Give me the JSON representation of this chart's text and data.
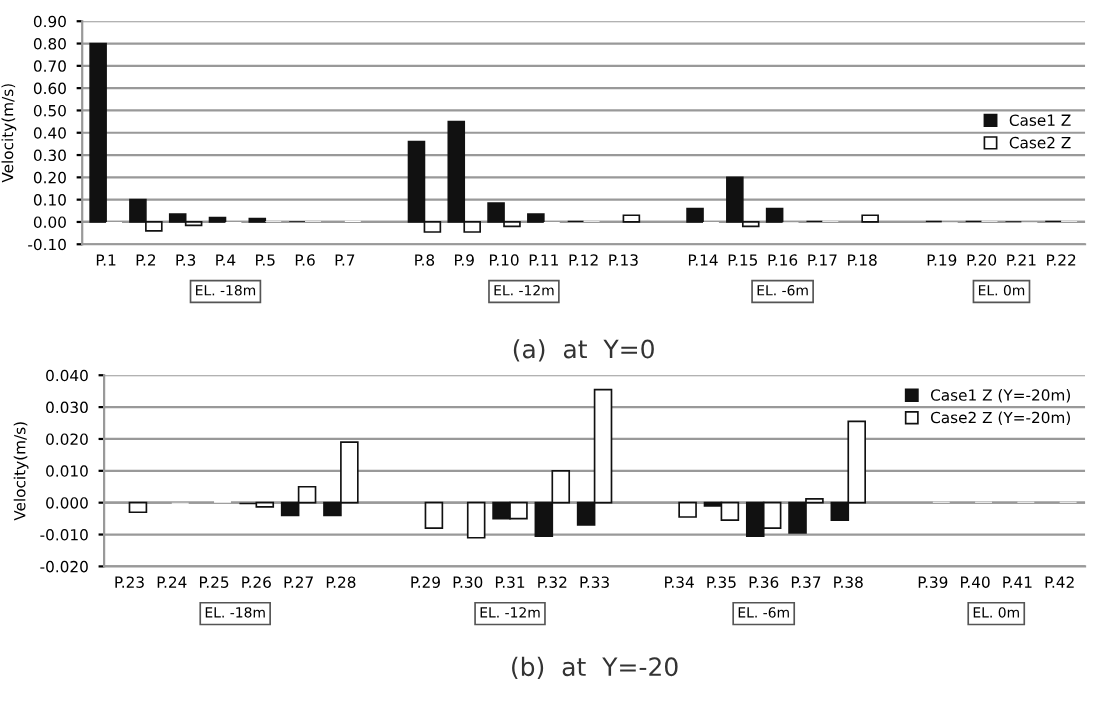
{
  "chart_data": [
    {
      "type": "bar",
      "title": "(a)  at  Y=0",
      "ylabel": "Velocity(m/s)",
      "categories": [
        "P.1",
        "P.2",
        "P.3",
        "P.4",
        "P.5",
        "P.6",
        "P.7",
        null,
        "P.8",
        "P.9",
        "P.10",
        "P.11",
        "P.12",
        "P.13",
        null,
        "P.14",
        "P.15",
        "P.16",
        "P.17",
        "P.18",
        null,
        "P.19",
        "P.20",
        "P.21",
        "P.22"
      ],
      "series": [
        {
          "name": "Case1 Z",
          "color": "#111111",
          "values": [
            0.8,
            0.1,
            0.035,
            0.02,
            0.015,
            0.003,
            0.0,
            null,
            0.36,
            0.45,
            0.085,
            0.035,
            0.005,
            0.0,
            null,
            0.06,
            0.2,
            0.06,
            0.005,
            0.0,
            null,
            0.005,
            0.005,
            0.003,
            0.005
          ]
        },
        {
          "name": "Case2 Z",
          "color": "#ffffff",
          "values": [
            -0.005,
            -0.04,
            -0.015,
            -0.005,
            0.003,
            0.003,
            0.005,
            null,
            -0.045,
            -0.045,
            -0.02,
            -0.005,
            0.003,
            0.03,
            null,
            -0.01,
            -0.02,
            -0.003,
            0.003,
            0.03,
            null,
            -0.003,
            0.003,
            -0.003,
            0.003
          ]
        }
      ],
      "ylim": [
        -0.1,
        0.9
      ],
      "yticks": [
        {
          "value": -0.1,
          "label": "-0.10"
        },
        {
          "value": 0.0,
          "label": "0.00"
        },
        {
          "value": 0.1,
          "label": "0.10"
        },
        {
          "value": 0.2,
          "label": "0.20"
        },
        {
          "value": 0.3,
          "label": "0.30"
        },
        {
          "value": 0.4,
          "label": "0.40"
        },
        {
          "value": 0.5,
          "label": "0.50"
        },
        {
          "value": 0.6,
          "label": "0.60"
        },
        {
          "value": 0.7,
          "label": "0.70"
        },
        {
          "value": 0.8,
          "label": "0.80"
        },
        {
          "value": 0.9,
          "label": "0.90"
        }
      ],
      "grid": "y",
      "legend": "right",
      "annotations": [
        "EL. -18m",
        "EL. -12m",
        "EL. -6m",
        "EL. 0m"
      ]
    },
    {
      "type": "bar",
      "title": "(b)  at  Y=-20",
      "ylabel": "Velocity(m/s)",
      "categories": [
        "P.23",
        "P.24",
        "P.25",
        "P.26",
        "P.27",
        "P.28",
        null,
        "P.29",
        "P.30",
        "P.31",
        "P.32",
        "P.33",
        null,
        "P.34",
        "P.35",
        "P.36",
        "P.37",
        "P.38",
        null,
        "P.39",
        "P.40",
        "P.41",
        "P.42"
      ],
      "series": [
        {
          "name": "Case1 Z (Y=-20m)",
          "color": "#111111",
          "values": [
            0.0,
            0.0,
            0.0,
            -0.0005,
            -0.004,
            -0.004,
            null,
            0.0,
            0.0,
            -0.005,
            -0.0105,
            -0.007,
            null,
            0.0,
            -0.001,
            -0.0105,
            -0.0095,
            -0.0055,
            null,
            0.0,
            0.0,
            0.0,
            0.0
          ]
        },
        {
          "name": "Case2 Z (Y=-20m)",
          "color": "#ffffff",
          "values": [
            -0.003,
            -0.0003,
            0.0005,
            -0.0013,
            0.005,
            0.019,
            null,
            -0.008,
            -0.011,
            -0.005,
            0.01,
            0.0355,
            null,
            -0.0045,
            -0.0055,
            -0.008,
            0.0012,
            0.0255,
            null,
            0.0003,
            0.0003,
            0.0003,
            0.0003
          ]
        }
      ],
      "ylim": [
        -0.02,
        0.04
      ],
      "yticks": [
        {
          "value": -0.02,
          "label": "-0.020"
        },
        {
          "value": -0.01,
          "label": "-0.010"
        },
        {
          "value": 0.0,
          "label": "0.000"
        },
        {
          "value": 0.01,
          "label": "0.010"
        },
        {
          "value": 0.02,
          "label": "0.020"
        },
        {
          "value": 0.03,
          "label": "0.030"
        },
        {
          "value": 0.04,
          "label": "0.040"
        }
      ],
      "grid": "y",
      "legend": "top right",
      "annotations": [
        "EL. -18m",
        "EL. -12m",
        "EL. -6m",
        "EL. 0m"
      ]
    }
  ]
}
